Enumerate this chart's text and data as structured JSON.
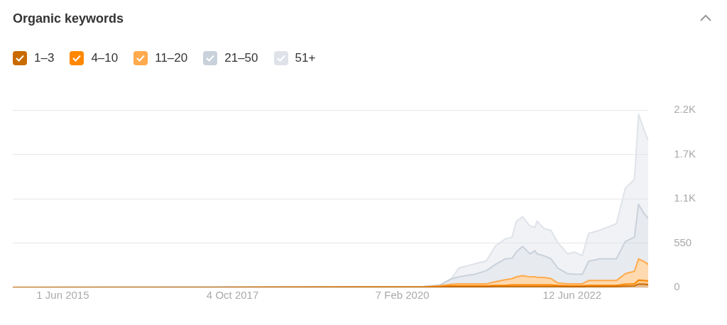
{
  "chart_data": {
    "type": "area",
    "title": "Organic keywords",
    "stacked": true,
    "legend": "top left",
    "grid": "y",
    "marker": "none",
    "x": [
      "2014-09-22",
      "2017-06-05",
      "2020-05-26",
      "2020-08-14",
      "2020-10-13",
      "2020-11-17",
      "2021-02-05",
      "2021-04-06",
      "2021-05-21",
      "2021-07-09",
      "2021-08-13",
      "2021-09-03",
      "2021-10-05",
      "2021-11-12",
      "2021-12-07",
      "2021-12-17",
      "2022-01-21",
      "2022-02-25",
      "2022-04-01",
      "2022-05-21",
      "2022-06-25",
      "2022-08-02",
      "2022-09-03",
      "2022-10-29",
      "2023-01-21",
      "2023-03-07",
      "2023-04-22",
      "2023-05-13",
      "2023-06-10",
      "2023-07-01"
    ],
    "xlim": [
      "2014-09-22",
      "2023-07-01"
    ],
    "xticks": [
      {
        "value": "2015-06-01",
        "label": "1 Jun 2015"
      },
      {
        "value": "2017-10-04",
        "label": "4 Oct 2017"
      },
      {
        "value": "2020-02-07",
        "label": "7 Feb 2020"
      },
      {
        "value": "2022-06-12",
        "label": "12 Jun 2022"
      }
    ],
    "ylim": [
      0,
      2200
    ],
    "yticks": [
      0,
      550,
      {
        "value": 1100,
        "label": "1.1K"
      },
      {
        "value": 1650,
        "label": "1.7K"
      },
      {
        "value": 2200,
        "label": "2.2K"
      }
    ],
    "series": [
      {
        "name": "1–3",
        "color": "#c96b00",
        "values": [
          0,
          0,
          2,
          5,
          8,
          8,
          8,
          8,
          10,
          10,
          12,
          12,
          12,
          12,
          12,
          12,
          12,
          12,
          10,
          8,
          8,
          8,
          10,
          10,
          10,
          15,
          18,
          40,
          40,
          35
        ]
      },
      {
        "name": "4–10",
        "color": "#ff8800",
        "values": [
          0,
          0,
          1,
          7,
          12,
          12,
          12,
          12,
          15,
          15,
          18,
          18,
          18,
          18,
          18,
          18,
          18,
          18,
          15,
          12,
          12,
          12,
          15,
          15,
          15,
          25,
          27,
          50,
          45,
          45
        ]
      },
      {
        "name": "11–20",
        "color": "#ffaa4d",
        "values": [
          0,
          0,
          2,
          8,
          20,
          25,
          25,
          25,
          45,
          70,
          78,
          100,
          116,
          101,
          101,
          95,
          93,
          80,
          29,
          25,
          25,
          25,
          60,
          60,
          60,
          129,
          155,
          264,
          235,
          205
        ]
      },
      {
        "name": "21–50",
        "color": "#c9d1db",
        "values": [
          0,
          5,
          5,
          8,
          68,
          86,
          117,
          163,
          215,
          259,
          253,
          308,
          362,
          284,
          323,
          290,
          269,
          244,
          184,
          124,
          117,
          117,
          238,
          269,
          269,
          400,
          423,
          676,
          595,
          569
        ]
      },
      {
        "name": "51+",
        "color": "#dfe3e9",
        "values": [
          0,
          0,
          0,
          2,
          2,
          109,
          128,
          122,
          230,
          246,
          262,
          377,
          369,
          346,
          292,
          408,
          338,
          354,
          317,
          246,
          276,
          230,
          346,
          354,
          436,
          661,
          717,
          1116,
          1035,
          969
        ]
      }
    ]
  }
}
